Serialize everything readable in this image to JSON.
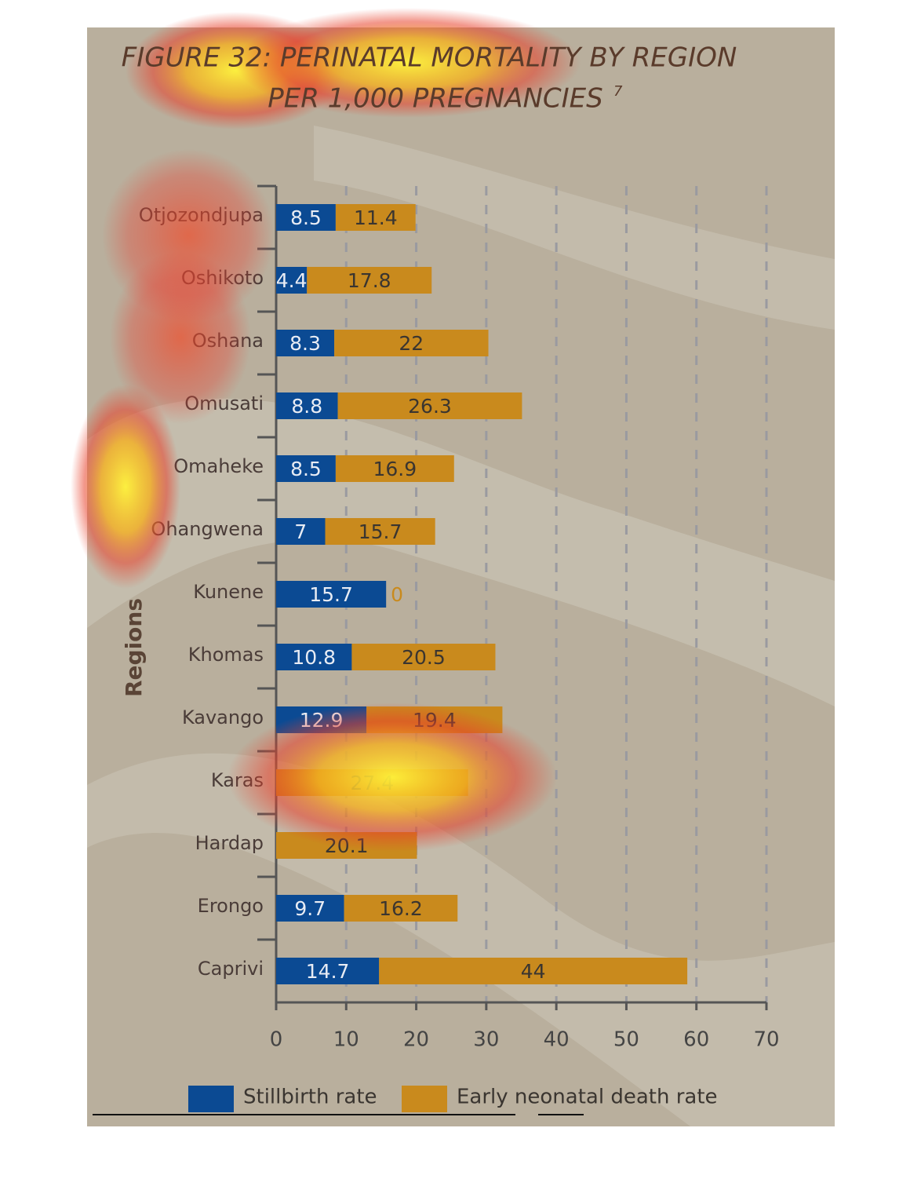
{
  "chart_data": {
    "type": "stacked_barh",
    "title": "FIGURE 32: PERINATAL MORTALITY BY REGION",
    "subtitle": "PER 1,000 PREGNANCIES",
    "subtitle_superscript": "7",
    "ylabel": "Regions",
    "categories": [
      "Otjozondjupa",
      "Oshikoto",
      "Oshana",
      "Omusati",
      "Omaheke",
      "Ohangwena",
      "Kunene",
      "Khomas",
      "Kavango",
      "Karas",
      "Hardap",
      "Erongo",
      "Caprivi"
    ],
    "series": [
      {
        "name": "Stillbirth rate",
        "color": "#0b4a93",
        "values": [
          8.5,
          4.4,
          8.3,
          8.8,
          8.5,
          7,
          15.7,
          10.8,
          12.9,
          0,
          0,
          9.7,
          14.7
        ]
      },
      {
        "name": "Early neonatal death rate",
        "color": "#c98a1d",
        "values": [
          11.4,
          17.8,
          22,
          26.3,
          16.9,
          15.7,
          0,
          20.5,
          19.4,
          27.4,
          20.1,
          16.2,
          44
        ]
      }
    ],
    "xlim": [
      0,
      70
    ],
    "xticks": [
      0,
      10,
      20,
      30,
      40,
      50,
      60,
      70
    ],
    "grid": true,
    "legend": "bottom"
  }
}
